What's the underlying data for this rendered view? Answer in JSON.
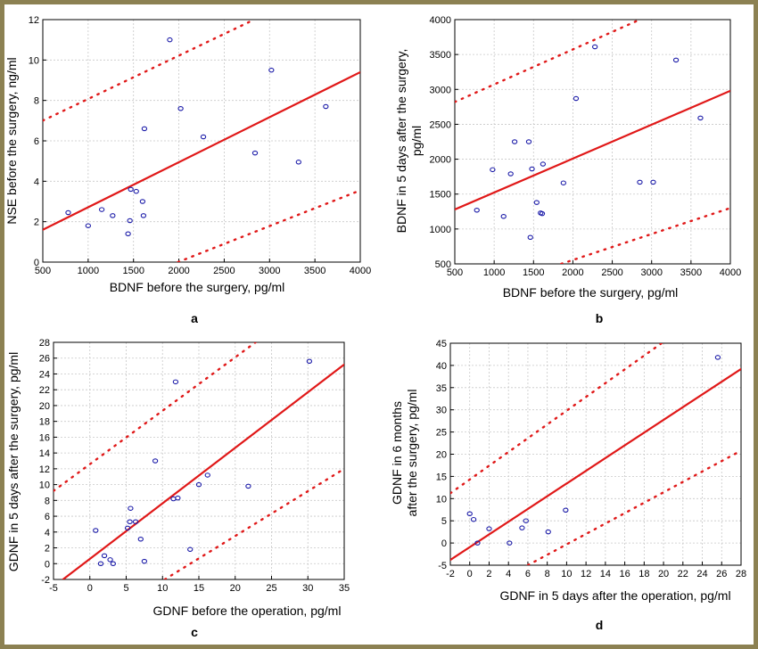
{
  "chart_data": [
    {
      "id": "a",
      "type": "scatter",
      "panel_label": "a",
      "xlabel": "BDNF before the surgery, pg/ml",
      "ylabel": "NSE before the surgery, ng/ml",
      "xlim": [
        500,
        4000
      ],
      "ylim": [
        0,
        12
      ],
      "xticks": [
        500,
        1000,
        1500,
        2000,
        2500,
        3000,
        3500,
        4000
      ],
      "yticks": [
        0,
        2,
        4,
        6,
        8,
        10,
        12
      ],
      "grid": true,
      "points": [
        {
          "x": 780,
          "y": 2.45
        },
        {
          "x": 1000,
          "y": 1.8
        },
        {
          "x": 1150,
          "y": 2.6
        },
        {
          "x": 1270,
          "y": 2.3
        },
        {
          "x": 1440,
          "y": 1.4
        },
        {
          "x": 1460,
          "y": 2.05
        },
        {
          "x": 1470,
          "y": 3.6
        },
        {
          "x": 1530,
          "y": 3.5
        },
        {
          "x": 1600,
          "y": 3.0
        },
        {
          "x": 1610,
          "y": 2.3
        },
        {
          "x": 1620,
          "y": 6.6
        },
        {
          "x": 1900,
          "y": 11.0
        },
        {
          "x": 2020,
          "y": 7.6
        },
        {
          "x": 2270,
          "y": 6.2
        },
        {
          "x": 2840,
          "y": 5.4
        },
        {
          "x": 3020,
          "y": 9.5
        },
        {
          "x": 3320,
          "y": 4.95
        },
        {
          "x": 3620,
          "y": 7.7
        }
      ],
      "fit": [
        [
          500,
          1.6
        ],
        [
          4000,
          9.4
        ]
      ],
      "upper": [
        [
          500,
          7.0
        ],
        [
          2830,
          12.0
        ]
      ],
      "lower": [
        [
          1990,
          0.0
        ],
        [
          4000,
          3.55
        ]
      ]
    },
    {
      "id": "b",
      "type": "scatter",
      "panel_label": "b",
      "xlabel": "BDNF before the surgery, pg/ml",
      "ylabel_lines": [
        "BDNF in 5 days after the surgery,",
        "pg/ml"
      ],
      "xlim": [
        500,
        4000
      ],
      "ylim": [
        500,
        4000
      ],
      "xticks": [
        500,
        1000,
        1500,
        2000,
        2500,
        3000,
        3500,
        4000
      ],
      "yticks": [
        500,
        1000,
        1500,
        2000,
        2500,
        3000,
        3500,
        4000
      ],
      "grid": true,
      "points": [
        {
          "x": 780,
          "y": 1270
        },
        {
          "x": 980,
          "y": 1850
        },
        {
          "x": 1120,
          "y": 1180
        },
        {
          "x": 1210,
          "y": 1790
        },
        {
          "x": 1260,
          "y": 2250
        },
        {
          "x": 1440,
          "y": 2250
        },
        {
          "x": 1460,
          "y": 880
        },
        {
          "x": 1480,
          "y": 1860
        },
        {
          "x": 1540,
          "y": 1380
        },
        {
          "x": 1590,
          "y": 1230
        },
        {
          "x": 1610,
          "y": 1220
        },
        {
          "x": 1620,
          "y": 1930
        },
        {
          "x": 1880,
          "y": 1660
        },
        {
          "x": 2040,
          "y": 2870
        },
        {
          "x": 2280,
          "y": 3610
        },
        {
          "x": 2850,
          "y": 1670
        },
        {
          "x": 3020,
          "y": 1670
        },
        {
          "x": 3310,
          "y": 3420
        },
        {
          "x": 3620,
          "y": 2590
        }
      ],
      "fit": [
        [
          500,
          1280
        ],
        [
          4000,
          2980
        ]
      ],
      "upper": [
        [
          500,
          2820
        ],
        [
          2850,
          4000
        ]
      ],
      "lower": [
        [
          1850,
          500
        ],
        [
          4000,
          1300
        ]
      ]
    },
    {
      "id": "c",
      "type": "scatter",
      "panel_label": "c",
      "xlabel": "GDNF before the operation, pg/ml",
      "ylabel": "GDNF in 5 days after the surgery, pg/ml",
      "xlim": [
        -5,
        35
      ],
      "ylim": [
        -2,
        28
      ],
      "xticks": [
        -5,
        0,
        5,
        10,
        15,
        20,
        25,
        30,
        35
      ],
      "yticks": [
        -2,
        0,
        2,
        4,
        6,
        8,
        10,
        12,
        14,
        16,
        18,
        20,
        22,
        24,
        26,
        28
      ],
      "grid": true,
      "points": [
        {
          "x": 0.8,
          "y": 4.2
        },
        {
          "x": 1.5,
          "y": 0.0
        },
        {
          "x": 2.0,
          "y": 1.0
        },
        {
          "x": 2.8,
          "y": 0.5
        },
        {
          "x": 3.2,
          "y": 0.0
        },
        {
          "x": 5.2,
          "y": 4.5
        },
        {
          "x": 5.5,
          "y": 5.3
        },
        {
          "x": 5.6,
          "y": 7.0
        },
        {
          "x": 6.3,
          "y": 5.3
        },
        {
          "x": 7.0,
          "y": 3.1
        },
        {
          "x": 7.5,
          "y": 0.3
        },
        {
          "x": 9.0,
          "y": 13.0
        },
        {
          "x": 11.5,
          "y": 8.2
        },
        {
          "x": 11.8,
          "y": 23.0
        },
        {
          "x": 12.1,
          "y": 8.3
        },
        {
          "x": 13.8,
          "y": 1.8
        },
        {
          "x": 15.0,
          "y": 10.0
        },
        {
          "x": 16.2,
          "y": 11.2
        },
        {
          "x": 21.8,
          "y": 9.8
        },
        {
          "x": 30.2,
          "y": 25.6
        }
      ],
      "fit": [
        [
          -3.7,
          -2.0
        ],
        [
          35,
          25.2
        ]
      ],
      "upper": [
        [
          -5,
          9.2
        ],
        [
          22.8,
          28
        ]
      ],
      "lower": [
        [
          10.3,
          -2
        ],
        [
          35,
          12.0
        ]
      ]
    },
    {
      "id": "d",
      "type": "scatter",
      "panel_label": "d",
      "xlabel": "GDNF in 5 days after the operation, pg/ml",
      "ylabel_lines": [
        "GDNF in 6 months",
        "after the surgery, pg/ml"
      ],
      "xlim": [
        -2,
        28
      ],
      "ylim": [
        -5,
        45
      ],
      "xticks": [
        -2,
        0,
        2,
        4,
        6,
        8,
        10,
        12,
        14,
        16,
        18,
        20,
        22,
        24,
        26,
        28
      ],
      "yticks": [
        -5,
        0,
        5,
        10,
        15,
        20,
        25,
        30,
        35,
        40,
        45
      ],
      "grid": true,
      "points": [
        {
          "x": 0.0,
          "y": 6.6
        },
        {
          "x": 0.4,
          "y": 5.3
        },
        {
          "x": 0.8,
          "y": 0.0
        },
        {
          "x": 2.0,
          "y": 3.2
        },
        {
          "x": 4.1,
          "y": 0.0
        },
        {
          "x": 5.4,
          "y": 3.4
        },
        {
          "x": 5.8,
          "y": 5.0
        },
        {
          "x": 8.1,
          "y": 2.5
        },
        {
          "x": 9.9,
          "y": 7.4
        },
        {
          "x": 25.6,
          "y": 41.8
        }
      ],
      "fit": [
        [
          -2,
          -3.8
        ],
        [
          28,
          39.2
        ]
      ],
      "upper": [
        [
          -2,
          11.2
        ],
        [
          19.8,
          45
        ]
      ],
      "lower": [
        [
          6.0,
          -5
        ],
        [
          28,
          20.8
        ]
      ]
    }
  ]
}
